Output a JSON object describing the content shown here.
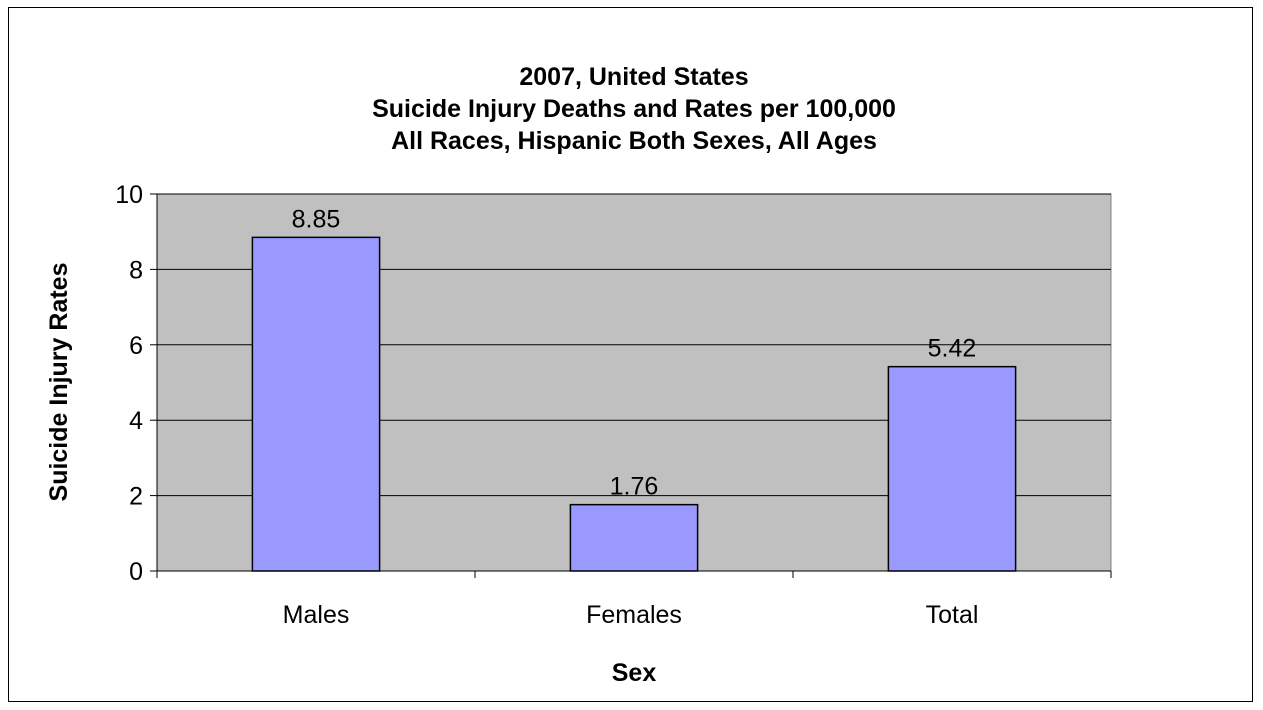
{
  "chart_data": {
    "type": "bar",
    "title": [
      "2007, United States",
      "Suicide Injury Deaths and Rates per 100,000",
      "All Races, Hispanic Both Sexes, All Ages"
    ],
    "xlabel": "Sex",
    "ylabel": "Suicide Injury Rates",
    "categories": [
      "Males",
      "Females",
      "Total"
    ],
    "values": [
      8.85,
      1.76,
      5.42
    ],
    "value_labels": [
      "8.85",
      "1.76",
      "5.42"
    ],
    "ylim": [
      0,
      10
    ],
    "yticks": [
      0,
      2,
      4,
      6,
      8,
      10
    ],
    "ytick_labels": [
      "0",
      "2",
      "4",
      "6",
      "8",
      "10"
    ],
    "grid": true,
    "legend": "none",
    "colors": {
      "bar_fill": "#9999ff",
      "bar_stroke": "#000000",
      "plot_background": "#c0c0c0",
      "gridline": "#000000"
    }
  }
}
